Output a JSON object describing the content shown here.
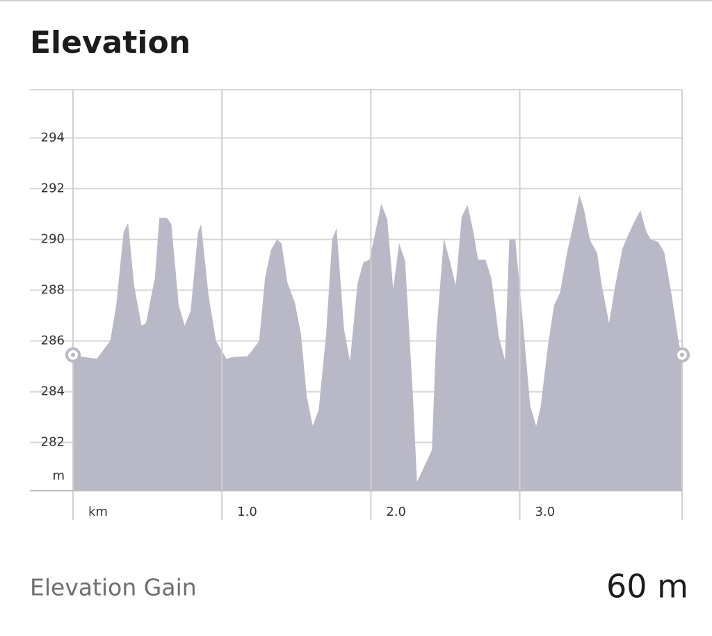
{
  "header": {
    "title": "Elevation"
  },
  "chart_data": {
    "type": "area",
    "color": "#b9b8c6",
    "grid": true,
    "xlim": [
      0,
      4.09
    ],
    "ylim": [
      280.1,
      295.9
    ],
    "xticks": [
      {
        "value": 0,
        "label": "km"
      },
      {
        "value": 1,
        "label": "1.0"
      },
      {
        "value": 2,
        "label": "2.0"
      },
      {
        "value": 3,
        "label": "3.0"
      }
    ],
    "yticks": [
      282,
      284,
      286,
      288,
      290,
      292,
      294
    ],
    "y_unit": "m",
    "x": [
      0,
      0.07,
      0.16,
      0.25,
      0.29,
      0.34,
      0.37,
      0.41,
      0.46,
      0.49,
      0.55,
      0.58,
      0.63,
      0.66,
      0.71,
      0.75,
      0.79,
      0.84,
      0.86,
      0.91,
      0.96,
      1.03,
      1.08,
      1.17,
      1.2,
      1.25,
      1.29,
      1.33,
      1.37,
      1.4,
      1.44,
      1.49,
      1.53,
      1.57,
      1.61,
      1.65,
      1.7,
      1.74,
      1.77,
      1.82,
      1.86,
      1.91,
      1.95,
      1.99,
      2.02,
      2.07,
      2.11,
      2.15,
      2.19,
      2.23,
      2.28,
      2.31,
      2.41,
      2.44,
      2.49,
      2.53,
      2.57,
      2.61,
      2.65,
      2.69,
      2.72,
      2.77,
      2.81,
      2.86,
      2.9,
      2.93,
      2.97,
      3.02,
      3.07,
      3.11,
      3.14,
      3.19,
      3.23,
      3.27,
      3.32,
      3.36,
      3.4,
      3.43,
      3.47,
      3.52,
      3.55,
      3.6,
      3.64,
      3.69,
      3.73,
      3.77,
      3.81,
      3.85,
      3.88,
      3.93,
      3.97,
      4.02,
      4.07,
      4.09
    ],
    "values": [
      285.45,
      285.37,
      285.3,
      286.0,
      287.4,
      290.3,
      290.65,
      288.2,
      286.6,
      286.7,
      288.5,
      290.85,
      290.85,
      290.6,
      287.4,
      286.6,
      287.2,
      290.3,
      290.6,
      287.8,
      286.0,
      285.3,
      285.37,
      285.4,
      285.6,
      286.0,
      288.5,
      289.6,
      290.0,
      289.85,
      288.3,
      287.5,
      286.3,
      283.8,
      282.65,
      283.3,
      286.3,
      290.0,
      290.45,
      286.45,
      285.2,
      288.25,
      289.1,
      289.2,
      290.0,
      291.4,
      290.8,
      288.05,
      289.85,
      289.15,
      284.1,
      280.45,
      281.7,
      286.3,
      290.05,
      289.15,
      288.2,
      290.9,
      291.35,
      290.25,
      289.2,
      289.2,
      288.45,
      286.15,
      285.25,
      290.0,
      290.0,
      286.8,
      283.45,
      282.65,
      283.4,
      285.85,
      287.4,
      287.9,
      289.55,
      290.6,
      291.75,
      291.2,
      290.0,
      289.45,
      288.2,
      286.7,
      288.15,
      289.65,
      290.2,
      290.7,
      291.15,
      290.3,
      290.0,
      289.9,
      289.5,
      287.8,
      285.85,
      285.45
    ]
  },
  "summary": {
    "label": "Elevation Gain",
    "value": "60 m"
  }
}
